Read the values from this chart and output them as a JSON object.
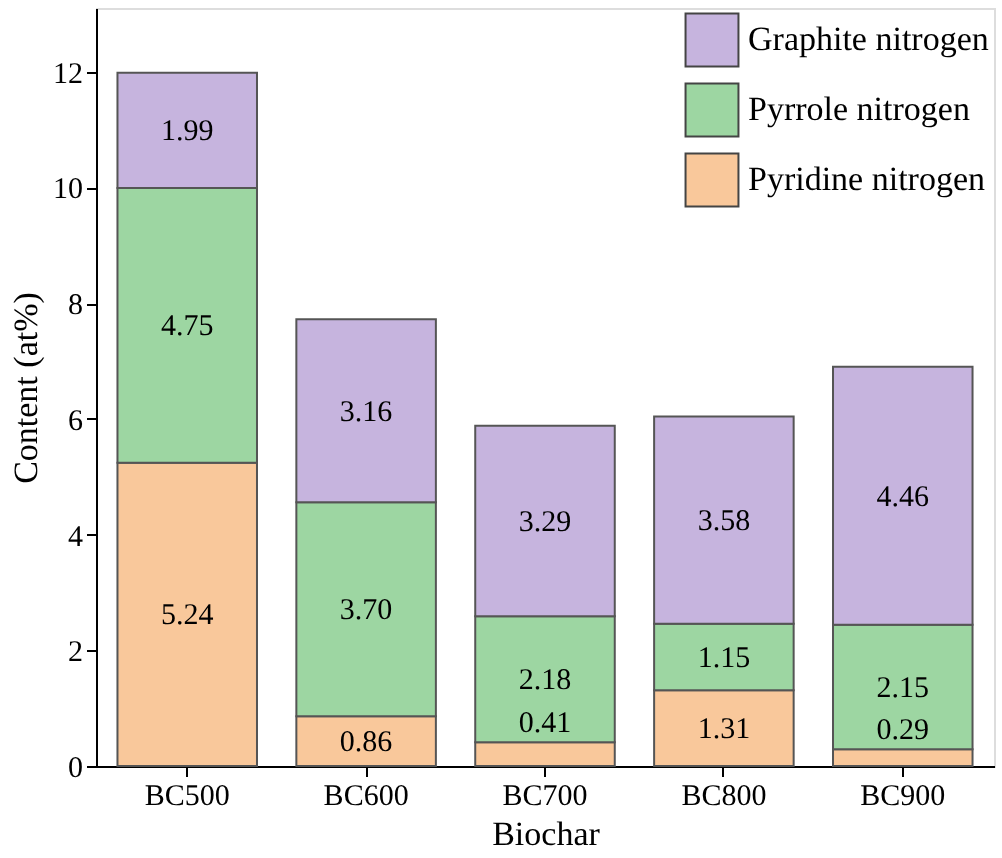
{
  "chart_data": {
    "type": "bar",
    "xlabel": "Biochar",
    "ylabel": "Content (at%)",
    "categories": [
      "BC500",
      "BC600",
      "BC700",
      "BC800",
      "BC900"
    ],
    "stacked": true,
    "series": [
      {
        "name": "Pyridine nitrogen",
        "color": "#f9c89b",
        "values": [
          5.24,
          0.86,
          0.41,
          1.31,
          0.29
        ],
        "value_labels": [
          "5.24",
          "0.86",
          "0.41",
          "1.31",
          "0.29"
        ]
      },
      {
        "name": "Pyrrole nitrogen",
        "color": "#9dd6a2",
        "values": [
          4.75,
          3.7,
          2.18,
          1.15,
          2.15
        ],
        "value_labels": [
          "4.75",
          "3.70",
          "2.18",
          "1.15",
          "2.15"
        ]
      },
      {
        "name": "Graphite nitrogen",
        "color": "#c6b4de",
        "values": [
          1.99,
          3.16,
          3.29,
          3.58,
          4.46
        ],
        "value_labels": [
          "1.99",
          "3.16",
          "3.29",
          "3.58",
          "4.46"
        ]
      }
    ],
    "ylim": [
      0,
      13.1
    ],
    "yticks": [
      0,
      2,
      4,
      6,
      8,
      10,
      12
    ],
    "legend": "top right",
    "grid": false
  }
}
